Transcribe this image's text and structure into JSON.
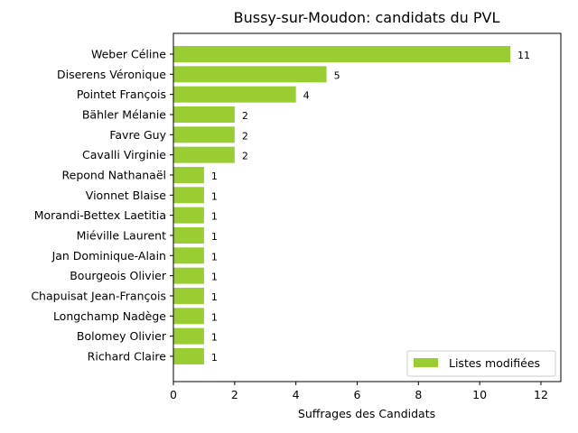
{
  "chart_data": {
    "type": "bar",
    "orientation": "horizontal",
    "title": "Bussy-sur-Moudon: candidats du PVL",
    "xlabel": "Suffrages des Candidats",
    "ylabel": "",
    "xlim": [
      0,
      12.65
    ],
    "xticks": [
      0,
      2,
      4,
      6,
      8,
      10,
      12
    ],
    "categories": [
      "Weber Céline",
      "Diserens Véronique",
      "Pointet François",
      "Bähler Mélanie",
      "Favre Guy",
      "Cavalli Virginie",
      "Repond Nathanaël",
      "Vionnet Blaise",
      "Morandi-Bettex Laetitia",
      "Miéville Laurent",
      "Jan Dominique-Alain",
      "Bourgeois Olivier",
      "Chapuisat Jean-François",
      "Longchamp Nadège",
      "Bolomey Olivier",
      "Richard Claire"
    ],
    "series": [
      {
        "name": "Listes modifiées",
        "color": "#9acd32",
        "values": [
          11,
          5,
          4,
          2,
          2,
          2,
          1,
          1,
          1,
          1,
          1,
          1,
          1,
          1,
          1,
          1
        ]
      }
    ],
    "legend_position": "bottom-right",
    "grid": false,
    "data_labels": true
  }
}
